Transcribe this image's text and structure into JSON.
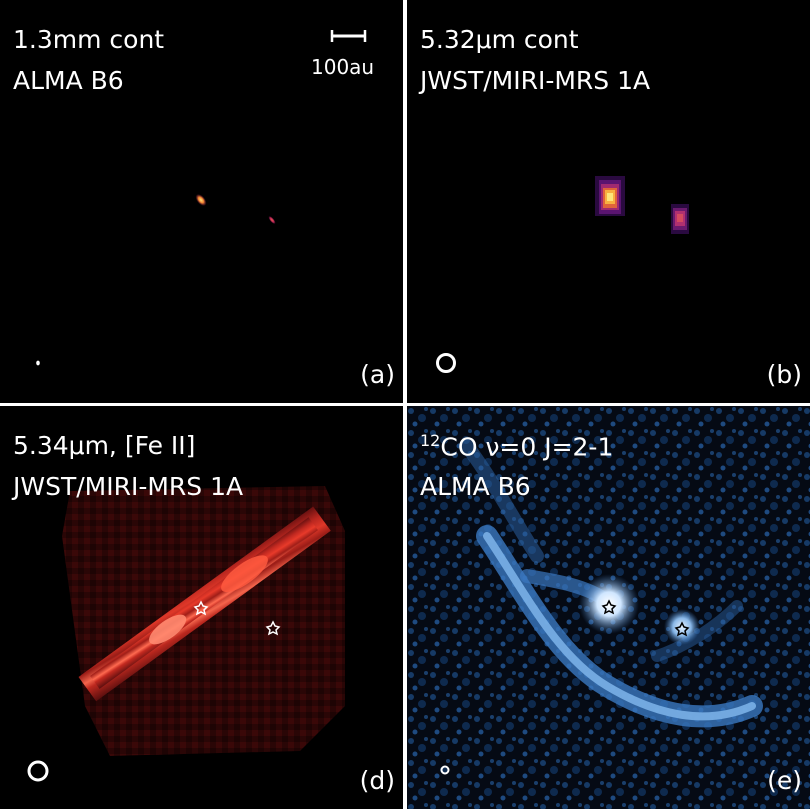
{
  "panels": {
    "a": {
      "line1": "1.3mm cont",
      "line2": "ALMA B6",
      "letter": "(a)",
      "scalebar_label": "100au"
    },
    "b": {
      "line1": "5.32μm cont",
      "line2": "JWST/MIRI-MRS 1A",
      "letter": "(b)"
    },
    "d": {
      "line1": "5.34μm, [Fe II]",
      "line2": "JWST/MIRI-MRS 1A",
      "letter": "(d)"
    },
    "e": {
      "line1_sup": "12",
      "line1": "CO ν=0 J=2-1",
      "line2": "ALMA B6",
      "letter": "(e)"
    }
  },
  "colors": {
    "background": "#000000",
    "separator": "#ffffff",
    "inferno_bright": "#fce67a",
    "inferno_mid": "#e0643a",
    "inferno_dark": "#6a1a6e",
    "red_jet": "#d43a2a",
    "blue_gas": "#3a78c0"
  }
}
